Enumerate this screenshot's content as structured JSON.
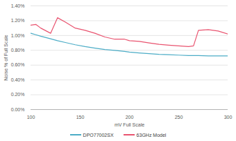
{
  "chart_data": {
    "type": "line",
    "x_label": "mV Full Scale",
    "y_label": "Noise % of Full Scale",
    "x": [
      100,
      105,
      110,
      120,
      127,
      135,
      145,
      155,
      165,
      175,
      185,
      195,
      200,
      210,
      220,
      230,
      240,
      250,
      260,
      265,
      270,
      280,
      290,
      300
    ],
    "series": [
      {
        "name": "DPO77002SX",
        "color": "#4bacc6",
        "values": [
          1.03,
          1.01,
          0.99,
          0.955,
          0.93,
          0.905,
          0.875,
          0.85,
          0.83,
          0.81,
          0.8,
          0.785,
          0.775,
          0.765,
          0.755,
          0.745,
          0.74,
          0.735,
          0.73,
          0.73,
          0.73,
          0.725,
          0.725,
          0.725
        ]
      },
      {
        "name": "63GHz Model",
        "color": "#e9536f",
        "values": [
          1.14,
          1.15,
          1.1,
          1.03,
          1.24,
          1.18,
          1.1,
          1.07,
          1.03,
          0.98,
          0.95,
          0.95,
          0.93,
          0.92,
          0.9,
          0.88,
          0.87,
          0.86,
          0.85,
          0.86,
          1.07,
          1.08,
          1.06,
          1.02
        ]
      }
    ],
    "xlim": [
      100,
      300
    ],
    "xticks": [
      100,
      150,
      200,
      250,
      300
    ],
    "ylim": [
      0,
      1.4
    ],
    "yticks": [
      {
        "value": 0,
        "label": "0.00%"
      },
      {
        "value": 0.2,
        "label": "0.20%"
      },
      {
        "value": 0.4,
        "label": "0.40%"
      },
      {
        "value": 0.6,
        "label": "0.60%"
      },
      {
        "value": 0.8,
        "label": "0.80%"
      },
      {
        "value": 1.0,
        "label": "1.00%"
      },
      {
        "value": 1.2,
        "label": "1.20%"
      },
      {
        "value": 1.4,
        "label": "1.40%"
      }
    ],
    "grid": true,
    "legend": "bottom"
  }
}
